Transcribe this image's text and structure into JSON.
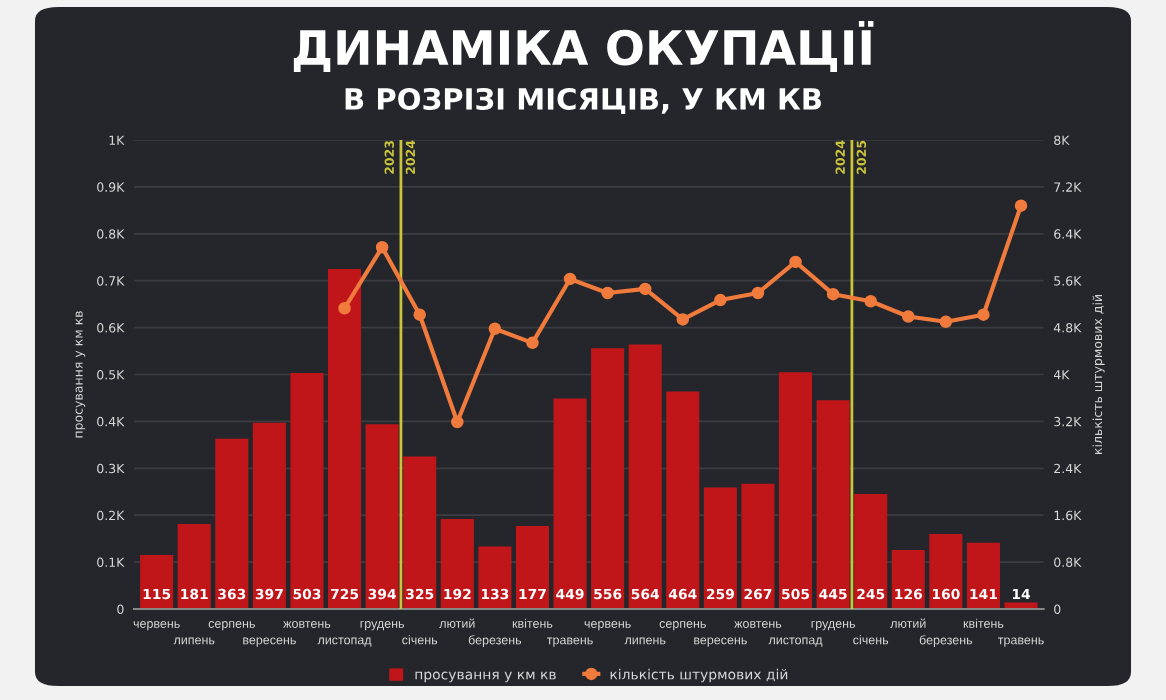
{
  "chart_data": {
    "type": "bar",
    "title": "ДИНАМІКА ОКУПАЦІЇ",
    "subtitle": "В РОЗРІЗІ МІСЯЦІВ, У КМ КВ",
    "ylabel": "просування у км кв",
    "y2label": "кількість штурмових дій",
    "categories": [
      "червень",
      "липень",
      "серпень",
      "вересень",
      "жовтень",
      "листопад",
      "грудень",
      "січень",
      "лютий",
      "березень",
      "квітень",
      "травень",
      "червень",
      "липень",
      "серпень",
      "вересень",
      "жовтень",
      "листопад",
      "грудень",
      "січень",
      "лютий",
      "березень",
      "квітень",
      "травень"
    ],
    "series": [
      {
        "name": "просування у км кв",
        "color": "#c0161a",
        "values": [
          115,
          181,
          363,
          397,
          503,
          725,
          394,
          325,
          192,
          133,
          177,
          449,
          556,
          564,
          464,
          259,
          267,
          505,
          445,
          245,
          126,
          160,
          141,
          14
        ],
        "value_labels": [
          "115",
          "181",
          "363",
          "397",
          "503",
          "725",
          "394",
          "325",
          "192",
          "133",
          "177",
          "449",
          "556",
          "564",
          "464",
          "259",
          "267",
          "505",
          "445",
          "245",
          "126",
          "160",
          "141",
          "14"
        ]
      },
      {
        "name": "кількість штурмових дій",
        "type": "line",
        "axis": "y2",
        "color": "#f07b3c",
        "marker": "circle",
        "values": [
          null,
          null,
          null,
          null,
          null,
          5130,
          6170,
          5020,
          3190,
          4780,
          4540,
          5630,
          5390,
          5460,
          4940,
          5270,
          5390,
          5920,
          5370,
          5250,
          4990,
          4900,
          5020,
          6880
        ]
      }
    ],
    "annotations": [
      "2023",
      "2024",
      "2024",
      "2025"
    ],
    "ylim": [
      0,
      1000
    ],
    "yticks": [
      0,
      {
        "value": 100,
        "label": "0.1K"
      },
      {
        "value": 200,
        "label": "0.2K"
      },
      {
        "value": 300,
        "label": "0.3K"
      },
      {
        "value": 400,
        "label": "0.4K"
      },
      {
        "value": 500,
        "label": "0.5K"
      },
      {
        "value": 600,
        "label": "0.6K"
      },
      {
        "value": 700,
        "label": "0.7K"
      },
      {
        "value": 800,
        "label": "0.8K"
      },
      {
        "value": 900,
        "label": "0.9K"
      },
      {
        "value": 1000,
        "label": "1K"
      }
    ],
    "y2lim": [
      0,
      8000
    ],
    "y2ticks": [
      0,
      {
        "value": 800,
        "label": "0.8K"
      },
      {
        "value": 1600,
        "label": "1.6K"
      },
      {
        "value": 2400,
        "label": "2.4K"
      },
      {
        "value": 3200,
        "label": "3.2K"
      },
      {
        "value": 4000,
        "label": "4K"
      },
      {
        "value": 4800,
        "label": "4.8K"
      },
      {
        "value": 5600,
        "label": "5.6K"
      },
      {
        "value": 6400,
        "label": "6.4K"
      },
      {
        "value": 7200,
        "label": "7.2K"
      },
      {
        "value": 8000,
        "label": "8K"
      }
    ],
    "grid": "y",
    "legend": "bottom"
  }
}
